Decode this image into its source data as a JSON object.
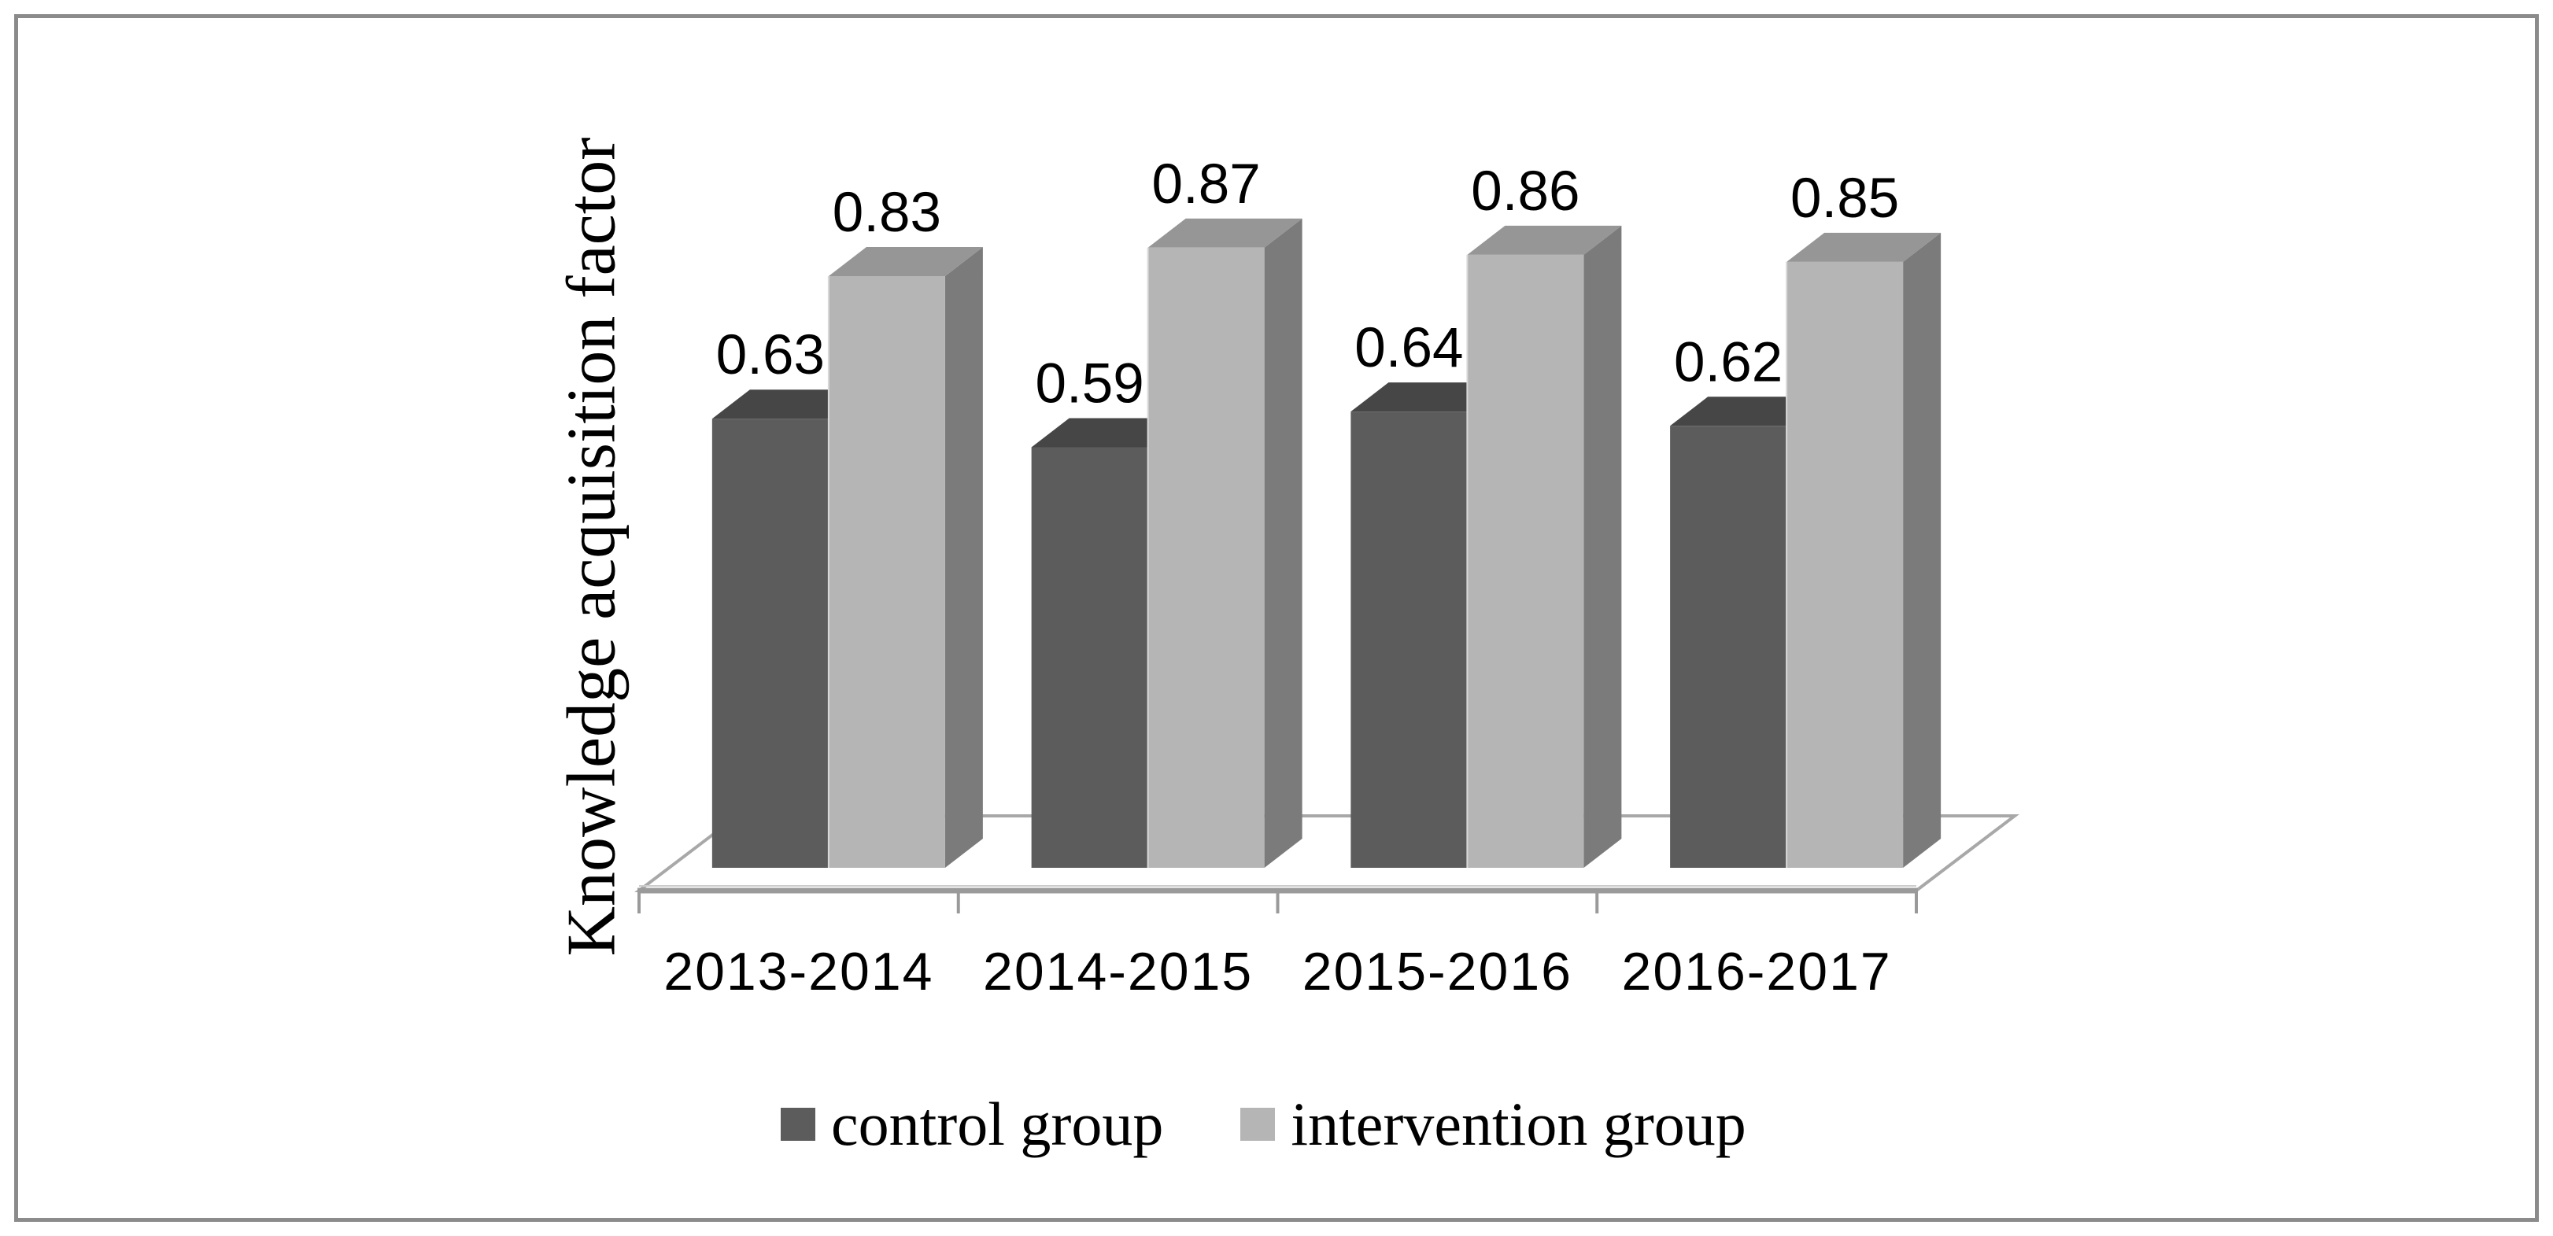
{
  "figure": {
    "background": "#ffffff",
    "border_color": "#8b8b8b"
  },
  "chart_data": {
    "type": "bar",
    "style": "3d-clustered-column",
    "title": "",
    "xlabel": "",
    "ylabel": "Knowledge acquisition factor",
    "ylim": [
      0,
      1
    ],
    "grid": false,
    "legend_position": "bottom",
    "axis_color": "#9a9a9a",
    "floor_edge_color": "#a8a8a8",
    "label_color": "#000000",
    "categories": [
      "2013-2014",
      "2014-2015",
      "2015-2016",
      "2016-2017"
    ],
    "series": [
      {
        "name": "control group",
        "values": [
          0.63,
          0.59,
          0.64,
          0.62
        ],
        "data_labels": [
          "0.63",
          "0.59",
          "0.64",
          "0.62"
        ],
        "front_color": "#5c5c5c",
        "top_color": "#464646",
        "side_color": "#3f3f3f"
      },
      {
        "name": "intervention group",
        "values": [
          0.83,
          0.87,
          0.86,
          0.85
        ],
        "data_labels": [
          "0.83",
          "0.87",
          "0.86",
          "0.85"
        ],
        "front_color": "#b5b5b5",
        "top_color": "#969696",
        "side_color": "#7b7b7b"
      }
    ]
  }
}
